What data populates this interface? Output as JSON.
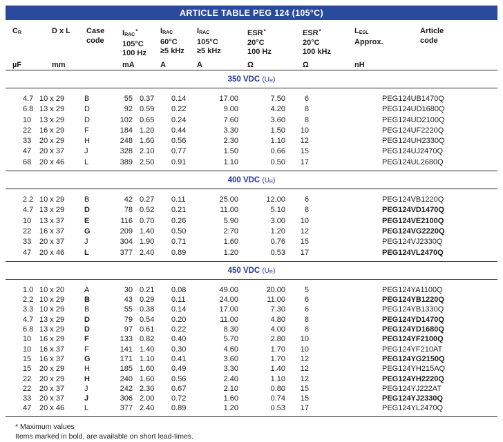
{
  "title": "ARTICLE TABLE PEG 124 (105°C)",
  "colors": {
    "banner_bg": "#2a4a9e",
    "banner_text": "#ffffff",
    "section_text": "#23379d",
    "body_text": "#1c1c1c",
    "rule": "#26262b"
  },
  "table": {
    "columns": [
      {
        "id": "cr",
        "base": "C",
        "sub": "R",
        "sup": "",
        "lines": [],
        "unit": "µF"
      },
      {
        "id": "dxl",
        "base": "D x L",
        "sub": "",
        "sup": "",
        "lines": [],
        "unit": "mm"
      },
      {
        "id": "case-code",
        "base": "Case",
        "sub": "",
        "sup": "",
        "lines": [
          "code"
        ],
        "unit": ""
      },
      {
        "id": "irac-105c-100hz",
        "base": "I",
        "sub": "RAC",
        "sup": "*",
        "lines": [
          "105°C",
          "100 Hz"
        ],
        "unit": "mA"
      },
      {
        "id": "irac-60c-5khz",
        "base": "I",
        "sub": "RAC",
        "sup": "",
        "lines": [
          "60°C",
          "≥5 kHz"
        ],
        "unit": "A"
      },
      {
        "id": "irac-105c-5khz",
        "base": "I",
        "sub": "RAC",
        "sup": "",
        "lines": [
          "105°C",
          "≥5 kHz"
        ],
        "unit": "A"
      },
      {
        "id": "esr-20c-100hz",
        "base": "ESR",
        "sub": "",
        "sup": "*",
        "lines": [
          "20°C",
          "100 Hz"
        ],
        "unit": "Ω"
      },
      {
        "id": "esr-20c-100khz",
        "base": "ESR",
        "sub": "",
        "sup": "*",
        "lines": [
          "20°C",
          "100 kHz"
        ],
        "unit": "Ω"
      },
      {
        "id": "lesl",
        "base": "L",
        "sub": "ESL",
        "sup": "",
        "lines": [
          "Approx."
        ],
        "unit": "nH"
      },
      {
        "id": "article-code",
        "base": "Article",
        "sub": "",
        "sup": "",
        "lines": [
          "code"
        ],
        "unit": ""
      }
    ],
    "sections": [
      {
        "voltage": "350 VDC",
        "u_base": "U",
        "u_sub": "R",
        "rows": [
          {
            "bold": false,
            "v": [
              "4.7",
              "10 x 29",
              "B",
              "55",
              "0.37",
              "0.14",
              "17.00",
              "7.50",
              "6",
              "PEG124UB1470Q"
            ]
          },
          {
            "bold": false,
            "v": [
              "6.8",
              "13 x 29",
              "D",
              "92",
              "0.59",
              "0.22",
              "9.00",
              "4.20",
              "8",
              "PEG124UD1680Q"
            ]
          },
          {
            "bold": false,
            "v": [
              "10",
              "13 x 29",
              "D",
              "102",
              "0.65",
              "0.24",
              "7.60",
              "3.60",
              "8",
              "PEG124UD2100Q"
            ]
          },
          {
            "bold": false,
            "v": [
              "22",
              "16 x 29",
              "F",
              "184",
              "1.20",
              "0.44",
              "3.30",
              "1.50",
              "10",
              "PEG124UF2220Q"
            ]
          },
          {
            "bold": false,
            "v": [
              "33",
              "20 x 29",
              "H",
              "248",
              "1.60",
              "0.56",
              "2.30",
              "1.10",
              "12",
              "PEG124UH2330Q"
            ]
          },
          {
            "bold": false,
            "v": [
              "47",
              "20 x 37",
              "J",
              "328",
              "2.10",
              "0.77",
              "1.50",
              "0.66",
              "15",
              "PEG124UJ2470Q"
            ]
          },
          {
            "bold": false,
            "v": [
              "68",
              "20 x 46",
              "L",
              "389",
              "2.50",
              "0.91",
              "1.10",
              "0.50",
              "17",
              "PEG124UL2680Q"
            ]
          }
        ]
      },
      {
        "voltage": "400 VDC",
        "u_base": "U",
        "u_sub": "R",
        "rows": [
          {
            "bold": false,
            "v": [
              "2.2",
              "10 x 29",
              "B",
              "42",
              "0.27",
              "0.11",
              "25.00",
              "12.00",
              "6",
              "PEG124VB1220Q"
            ]
          },
          {
            "bold": true,
            "v": [
              "4.7",
              "13 x 29",
              "D",
              "78",
              "0.52",
              "0.21",
              "11.00",
              "5.10",
              "8",
              "PEG124VD1470Q"
            ]
          },
          {
            "bold": true,
            "v": [
              "10",
              "13 x 37",
              "E",
              "116",
              "0.70",
              "0.26",
              "5.90",
              "3.00",
              "10",
              "PEG124VE2100Q"
            ]
          },
          {
            "bold": true,
            "v": [
              "22",
              "16 x 37",
              "G",
              "209",
              "1.40",
              "0.50",
              "2.70",
              "1.20",
              "12",
              "PEG124VG2220Q"
            ]
          },
          {
            "bold": false,
            "v": [
              "33",
              "20 x 37",
              "J",
              "304",
              "1.90",
              "0.71",
              "1.60",
              "0.76",
              "15",
              "PEG124VJ2330Q"
            ]
          },
          {
            "bold": true,
            "v": [
              "47",
              "20 x 46",
              "L",
              "377",
              "2.40",
              "0.89",
              "1.20",
              "0.53",
              "17",
              "PEG124VL2470Q"
            ]
          }
        ]
      },
      {
        "voltage": "450 VDC",
        "u_base": "U",
        "u_sub": "R",
        "rows": [
          {
            "bold": false,
            "v": [
              "1.0",
              "10 x 20",
              "A",
              "30",
              "0.21",
              "0.08",
              "49.00",
              "20.00",
              "5",
              "PEG124YA1100Q"
            ]
          },
          {
            "bold": true,
            "v": [
              "2.2",
              "10 x 29",
              "B",
              "43",
              "0.29",
              "0.11",
              "24.00",
              "11.00",
              "6",
              "PEG124YB1220Q"
            ]
          },
          {
            "bold": false,
            "v": [
              "3.3",
              "10 x 29",
              "B",
              "55",
              "0.38",
              "0.14",
              "17.00",
              "7.30",
              "6",
              "PEG124YB1330Q"
            ]
          },
          {
            "bold": true,
            "v": [
              "4.7",
              "13 x 29",
              "D",
              "79",
              "0.54",
              "0.20",
              "11.00",
              "4.80",
              "8",
              "PEG124YD1470Q"
            ]
          },
          {
            "bold": true,
            "v": [
              "6.8",
              "13 x 29",
              "D",
              "97",
              "0.61",
              "0.22",
              "8.30",
              "4.00",
              "8",
              "PEG124YD1680Q"
            ]
          },
          {
            "bold": true,
            "v": [
              "10",
              "16 x 29",
              "F",
              "133",
              "0.82",
              "0.40",
              "5.70",
              "2.80",
              "10",
              "PEG124YF2100Q"
            ]
          },
          {
            "bold": false,
            "v": [
              "10",
              "16 x 37",
              "F",
              "141",
              "1.40",
              "0.30",
              "4.60",
              "1.70",
              "10",
              "PEG124YF210AT"
            ]
          },
          {
            "bold": true,
            "v": [
              "15",
              "16 x 37",
              "G",
              "171",
              "1.10",
              "0.41",
              "3.60",
              "1.70",
              "12",
              "PEG124YG2150Q"
            ]
          },
          {
            "bold": false,
            "v": [
              "15",
              "20 x 29",
              "H",
              "185",
              "1.60",
              "0.49",
              "3.30",
              "1.40",
              "12",
              "PEG124YH215AQ"
            ]
          },
          {
            "bold": true,
            "v": [
              "22",
              "20 x 29",
              "H",
              "240",
              "1.60",
              "0.56",
              "2.40",
              "1.10",
              "12",
              "PEG124YH2220Q"
            ]
          },
          {
            "bold": false,
            "v": [
              "22",
              "20 x 37",
              "J",
              "242",
              "2.30",
              "0.67",
              "2.10",
              "0.80",
              "15",
              "PEG124YJ222AT"
            ]
          },
          {
            "bold": true,
            "v": [
              "33",
              "20 x 37",
              "J",
              "306",
              "2.00",
              "0.72",
              "1.60",
              "0.74",
              "15",
              "PEG124YJ2330Q"
            ]
          },
          {
            "bold": false,
            "v": [
              "47",
              "20 x 46",
              "L",
              "377",
              "2.40",
              "0.89",
              "1.20",
              "0.53",
              "17",
              "PEG124YL2470Q"
            ]
          }
        ]
      }
    ]
  },
  "footnotes": [
    "* Maximum values",
    "Items marked in bold, are available on short lead-times."
  ]
}
